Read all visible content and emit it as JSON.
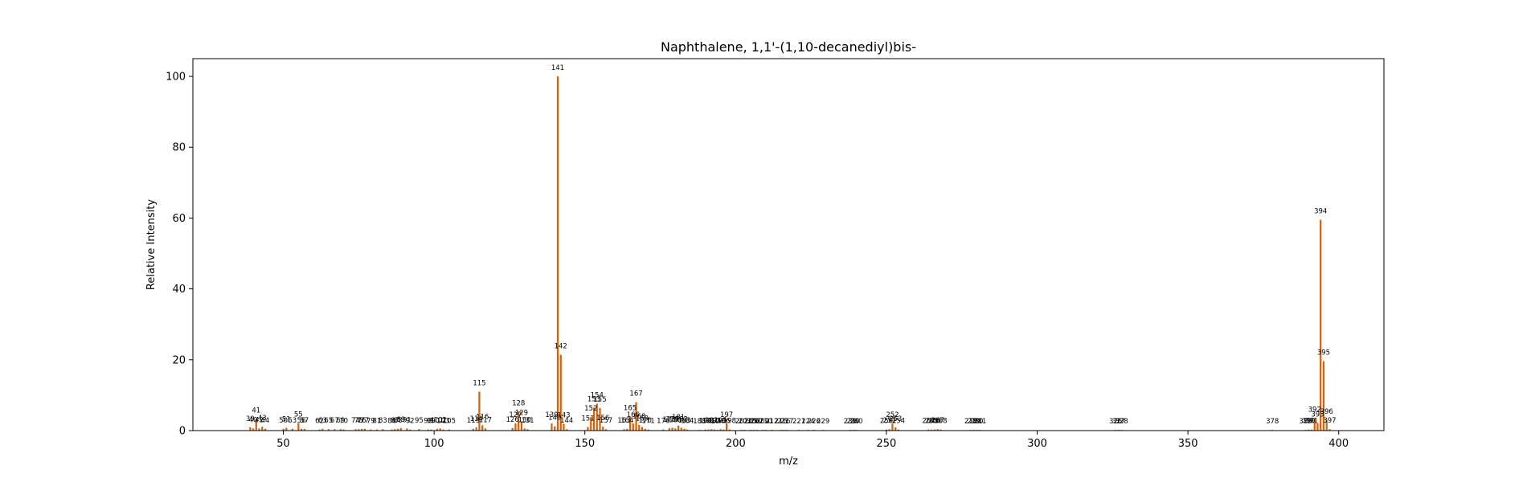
{
  "chart_data": {
    "type": "bar",
    "title": "Naphthalene, 1,1'-(1,10-decanediyl)bis-",
    "xlabel": "m/z",
    "ylabel": "Relative Intensity",
    "xlim": [
      20,
      415
    ],
    "ylim": [
      0,
      105
    ],
    "xticks": [
      50,
      100,
      150,
      200,
      250,
      300,
      350,
      400
    ],
    "yticks": [
      0,
      20,
      40,
      60,
      80,
      100
    ],
    "grid": false,
    "legend": "none",
    "bar_color": "#d95f02",
    "peaks": [
      {
        "x": 39,
        "y": 0.9,
        "label": "39"
      },
      {
        "x": 40,
        "y": 0.6,
        "label": "40"
      },
      {
        "x": 41,
        "y": 3.3,
        "label": "41"
      },
      {
        "x": 42,
        "y": 0.6,
        "label": "42"
      },
      {
        "x": 43,
        "y": 1.1,
        "label": "43"
      },
      {
        "x": 44,
        "y": 0.5,
        "label": "44"
      },
      {
        "x": 50,
        "y": 0.5,
        "label": "50"
      },
      {
        "x": 51,
        "y": 0.8,
        "label": "51"
      },
      {
        "x": 53,
        "y": 0.5,
        "label": "53"
      },
      {
        "x": 55,
        "y": 2.1,
        "label": "55"
      },
      {
        "x": 56,
        "y": 0.5,
        "label": "56"
      },
      {
        "x": 57,
        "y": 0.5,
        "label": "57"
      },
      {
        "x": 62,
        "y": 0.3,
        "label": "62"
      },
      {
        "x": 63,
        "y": 0.5,
        "label": "63"
      },
      {
        "x": 65,
        "y": 0.4,
        "label": "65"
      },
      {
        "x": 67,
        "y": 0.4,
        "label": "67"
      },
      {
        "x": 69,
        "y": 0.4,
        "label": "69"
      },
      {
        "x": 70,
        "y": 0.3,
        "label": "70"
      },
      {
        "x": 74,
        "y": 0.4,
        "label": "74"
      },
      {
        "x": 75,
        "y": 0.4,
        "label": "75"
      },
      {
        "x": 76,
        "y": 0.5,
        "label": "76"
      },
      {
        "x": 77,
        "y": 0.5,
        "label": "77"
      },
      {
        "x": 79,
        "y": 0.3,
        "label": "79"
      },
      {
        "x": 81,
        "y": 0.3,
        "label": "81"
      },
      {
        "x": 83,
        "y": 0.4,
        "label": "83"
      },
      {
        "x": 86,
        "y": 0.3,
        "label": "86"
      },
      {
        "x": 87,
        "y": 0.4,
        "label": "87"
      },
      {
        "x": 88,
        "y": 0.5,
        "label": "88"
      },
      {
        "x": 89,
        "y": 0.7,
        "label": "89"
      },
      {
        "x": 91,
        "y": 0.6,
        "label": "91"
      },
      {
        "x": 92,
        "y": 0.3,
        "label": "92"
      },
      {
        "x": 95,
        "y": 0.4,
        "label": "95"
      },
      {
        "x": 98,
        "y": 0.3,
        "label": "98"
      },
      {
        "x": 99,
        "y": 0.3,
        "label": "99"
      },
      {
        "x": 101,
        "y": 0.5,
        "label": "101"
      },
      {
        "x": 102,
        "y": 0.6,
        "label": "102"
      },
      {
        "x": 103,
        "y": 0.3,
        "label": "103"
      },
      {
        "x": 105,
        "y": 0.3,
        "label": "105"
      },
      {
        "x": 113,
        "y": 0.5,
        "label": "113"
      },
      {
        "x": 114,
        "y": 0.9,
        "label": "114"
      },
      {
        "x": 115,
        "y": 11.0,
        "label": "115"
      },
      {
        "x": 116,
        "y": 1.5,
        "label": "116"
      },
      {
        "x": 117,
        "y": 0.6,
        "label": "117"
      },
      {
        "x": 126,
        "y": 0.7,
        "label": "126"
      },
      {
        "x": 127,
        "y": 2.0,
        "label": "127"
      },
      {
        "x": 128,
        "y": 5.3,
        "label": "128"
      },
      {
        "x": 129,
        "y": 2.6,
        "label": "129"
      },
      {
        "x": 130,
        "y": 0.6,
        "label": "130"
      },
      {
        "x": 131,
        "y": 0.4,
        "label": "131"
      },
      {
        "x": 139,
        "y": 2.0,
        "label": "139"
      },
      {
        "x": 140,
        "y": 1.2,
        "label": "140"
      },
      {
        "x": 141,
        "y": 100.0,
        "label": "141"
      },
      {
        "x": 142,
        "y": 21.4,
        "label": "142"
      },
      {
        "x": 143,
        "y": 1.9,
        "label": "143"
      },
      {
        "x": 144,
        "y": 0.4,
        "label": "144"
      },
      {
        "x": 151,
        "y": 1.0,
        "label": "151"
      },
      {
        "x": 152,
        "y": 3.8,
        "label": "152"
      },
      {
        "x": 153,
        "y": 6.5,
        "label": "153"
      },
      {
        "x": 154,
        "y": 7.6,
        "label": "154"
      },
      {
        "x": 155,
        "y": 6.4,
        "label": "155"
      },
      {
        "x": 156,
        "y": 1.1,
        "label": "156"
      },
      {
        "x": 157,
        "y": 0.4,
        "label": "157"
      },
      {
        "x": 163,
        "y": 0.4,
        "label": "163"
      },
      {
        "x": 164,
        "y": 0.5,
        "label": "164"
      },
      {
        "x": 165,
        "y": 4.0,
        "label": "165"
      },
      {
        "x": 166,
        "y": 2.0,
        "label": "166"
      },
      {
        "x": 167,
        "y": 8.0,
        "label": "167"
      },
      {
        "x": 168,
        "y": 1.6,
        "label": "168"
      },
      {
        "x": 169,
        "y": 1.0,
        "label": "169"
      },
      {
        "x": 170,
        "y": 0.5,
        "label": "170"
      },
      {
        "x": 171,
        "y": 0.3,
        "label": "171"
      },
      {
        "x": 176,
        "y": 0.3,
        "label": "176"
      },
      {
        "x": 178,
        "y": 0.7,
        "label": "178"
      },
      {
        "x": 179,
        "y": 0.8,
        "label": "179"
      },
      {
        "x": 180,
        "y": 0.6,
        "label": "180"
      },
      {
        "x": 181,
        "y": 1.4,
        "label": "181"
      },
      {
        "x": 182,
        "y": 0.8,
        "label": "182"
      },
      {
        "x": 183,
        "y": 0.5,
        "label": "183"
      },
      {
        "x": 184,
        "y": 0.3,
        "label": "184"
      },
      {
        "x": 188,
        "y": 0.2,
        "label": "188"
      },
      {
        "x": 190,
        "y": 0.3,
        "label": "190"
      },
      {
        "x": 191,
        "y": 0.3,
        "label": "191"
      },
      {
        "x": 192,
        "y": 0.4,
        "label": "192"
      },
      {
        "x": 193,
        "y": 0.3,
        "label": "193"
      },
      {
        "x": 194,
        "y": 0.2,
        "label": "194"
      },
      {
        "x": 195,
        "y": 0.4,
        "label": "195"
      },
      {
        "x": 196,
        "y": 0.3,
        "label": "196"
      },
      {
        "x": 197,
        "y": 2.0,
        "label": "197"
      },
      {
        "x": 198,
        "y": 0.3,
        "label": "198"
      },
      {
        "x": 202,
        "y": 0.2,
        "label": "202"
      },
      {
        "x": 203,
        "y": 0.2,
        "label": "203"
      },
      {
        "x": 205,
        "y": 0.2,
        "label": "205"
      },
      {
        "x": 206,
        "y": 0.2,
        "label": "206"
      },
      {
        "x": 207,
        "y": 0.2,
        "label": "207"
      },
      {
        "x": 209,
        "y": 0.2,
        "label": "209"
      },
      {
        "x": 210,
        "y": 0.2,
        "label": "210"
      },
      {
        "x": 212,
        "y": 0.2,
        "label": "212"
      },
      {
        "x": 215,
        "y": 0.2,
        "label": "215"
      },
      {
        "x": 216,
        "y": 0.2,
        "label": "216"
      },
      {
        "x": 217,
        "y": 0.2,
        "label": "217"
      },
      {
        "x": 221,
        "y": 0.2,
        "label": "221"
      },
      {
        "x": 224,
        "y": 0.2,
        "label": "224"
      },
      {
        "x": 226,
        "y": 0.2,
        "label": "226"
      },
      {
        "x": 229,
        "y": 0.2,
        "label": "229"
      },
      {
        "x": 238,
        "y": 0.2,
        "label": "238"
      },
      {
        "x": 239,
        "y": 0.2,
        "label": "239"
      },
      {
        "x": 240,
        "y": 0.2,
        "label": "240"
      },
      {
        "x": 250,
        "y": 0.3,
        "label": "250"
      },
      {
        "x": 251,
        "y": 0.4,
        "label": "251"
      },
      {
        "x": 252,
        "y": 2.0,
        "label": "252"
      },
      {
        "x": 253,
        "y": 0.9,
        "label": "253"
      },
      {
        "x": 254,
        "y": 0.3,
        "label": "254"
      },
      {
        "x": 264,
        "y": 0.3,
        "label": "264"
      },
      {
        "x": 265,
        "y": 0.3,
        "label": "265"
      },
      {
        "x": 266,
        "y": 0.3,
        "label": "266"
      },
      {
        "x": 267,
        "y": 0.4,
        "label": "267"
      },
      {
        "x": 268,
        "y": 0.3,
        "label": "268"
      },
      {
        "x": 278,
        "y": 0.2,
        "label": "278"
      },
      {
        "x": 279,
        "y": 0.2,
        "label": "279"
      },
      {
        "x": 280,
        "y": 0.2,
        "label": "280"
      },
      {
        "x": 281,
        "y": 0.2,
        "label": "281"
      },
      {
        "x": 326,
        "y": 0.2,
        "label": "326"
      },
      {
        "x": 327,
        "y": 0.2,
        "label": "327"
      },
      {
        "x": 328,
        "y": 0.2,
        "label": "328"
      },
      {
        "x": 378,
        "y": 0.2,
        "label": "378"
      },
      {
        "x": 389,
        "y": 0.2,
        "label": "389"
      },
      {
        "x": 390,
        "y": 0.3,
        "label": "390"
      },
      {
        "x": 391,
        "y": 0.3,
        "label": "391"
      },
      {
        "x": 392,
        "y": 3.5,
        "label": "392"
      },
      {
        "x": 393,
        "y": 2.1,
        "label": "393"
      },
      {
        "x": 394,
        "y": 59.5,
        "label": "394"
      },
      {
        "x": 395,
        "y": 19.6,
        "label": "395"
      },
      {
        "x": 396,
        "y": 3.0,
        "label": "396"
      },
      {
        "x": 397,
        "y": 0.4,
        "label": "397"
      }
    ]
  }
}
